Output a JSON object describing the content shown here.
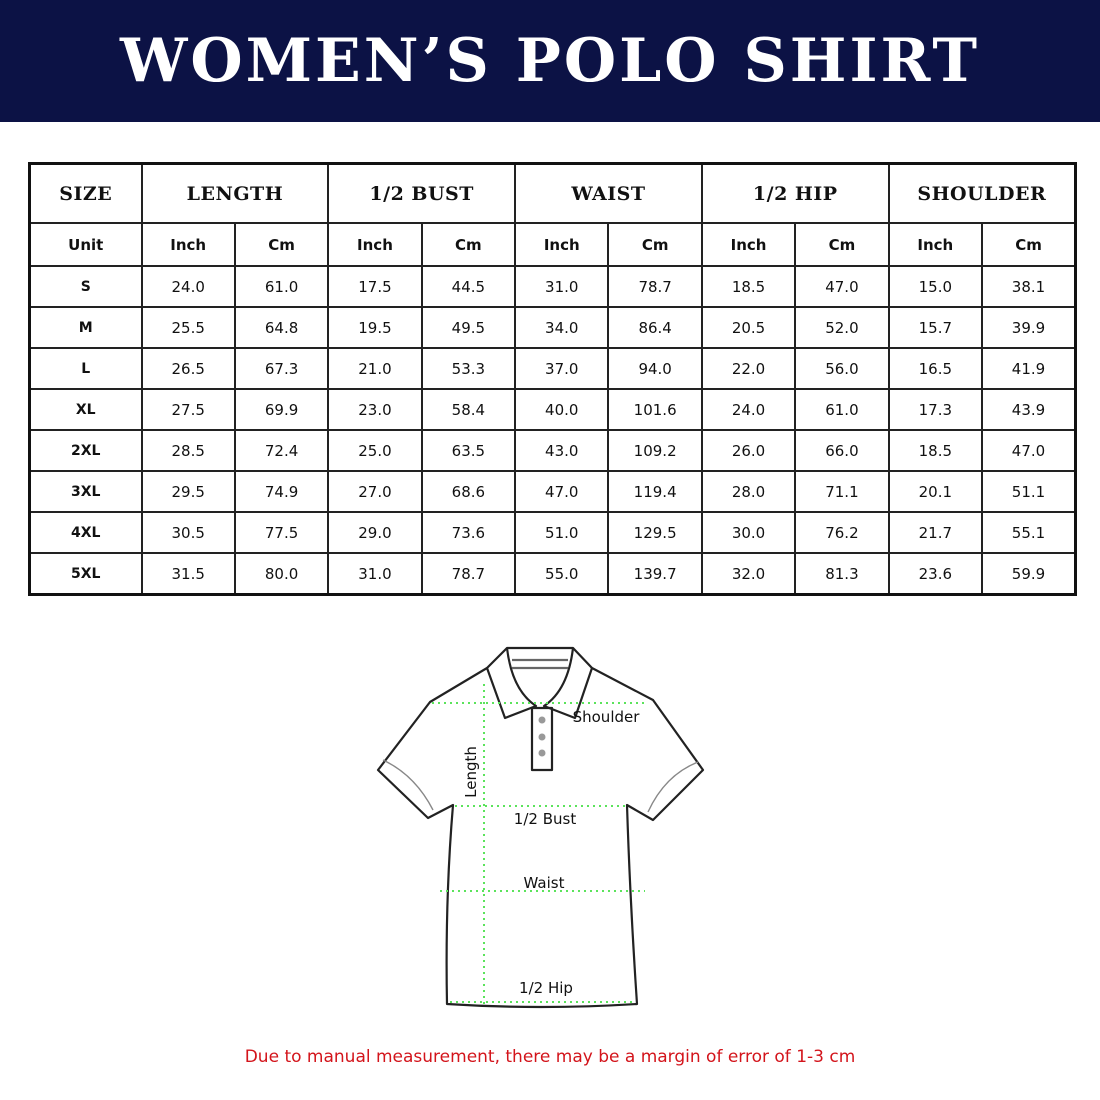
{
  "title": "WOMEN’S POLO SHIRT",
  "table": {
    "size_header": "SIZE",
    "unit_label": "Unit",
    "groups": [
      "LENGTH",
      "1/2 BUST",
      "WAIST",
      "1/2 HIP",
      "SHOULDER"
    ],
    "units": [
      "Inch",
      "Cm"
    ],
    "rows": [
      {
        "size": "S",
        "values": [
          "24.0",
          "61.0",
          "17.5",
          "44.5",
          "31.0",
          "78.7",
          "18.5",
          "47.0",
          "15.0",
          "38.1"
        ]
      },
      {
        "size": "M",
        "values": [
          "25.5",
          "64.8",
          "19.5",
          "49.5",
          "34.0",
          "86.4",
          "20.5",
          "52.0",
          "15.7",
          "39.9"
        ]
      },
      {
        "size": "L",
        "values": [
          "26.5",
          "67.3",
          "21.0",
          "53.3",
          "37.0",
          "94.0",
          "22.0",
          "56.0",
          "16.5",
          "41.9"
        ]
      },
      {
        "size": "XL",
        "values": [
          "27.5",
          "69.9",
          "23.0",
          "58.4",
          "40.0",
          "101.6",
          "24.0",
          "61.0",
          "17.3",
          "43.9"
        ]
      },
      {
        "size": "2XL",
        "values": [
          "28.5",
          "72.4",
          "25.0",
          "63.5",
          "43.0",
          "109.2",
          "26.0",
          "66.0",
          "18.5",
          "47.0"
        ]
      },
      {
        "size": "3XL",
        "values": [
          "29.5",
          "74.9",
          "27.0",
          "68.6",
          "47.0",
          "119.4",
          "28.0",
          "71.1",
          "20.1",
          "51.1"
        ]
      },
      {
        "size": "4XL",
        "values": [
          "30.5",
          "77.5",
          "29.0",
          "73.6",
          "51.0",
          "129.5",
          "30.0",
          "76.2",
          "21.7",
          "55.1"
        ]
      },
      {
        "size": "5XL",
        "values": [
          "31.5",
          "80.0",
          "31.0",
          "78.7",
          "55.0",
          "139.7",
          "32.0",
          "81.3",
          "23.6",
          "59.9"
        ]
      }
    ]
  },
  "diagram": {
    "shoulder": "Shoulder",
    "length": "Length",
    "bust": "1/2 Bust",
    "waist": "Waist",
    "hip": "1/2 Hip"
  },
  "note": "Due to manual measurement, there may be a margin of error of 1-3 cm",
  "colors": {
    "banner": "#0c1245",
    "note": "#d3141b",
    "measure_lines": "#5be35b"
  }
}
